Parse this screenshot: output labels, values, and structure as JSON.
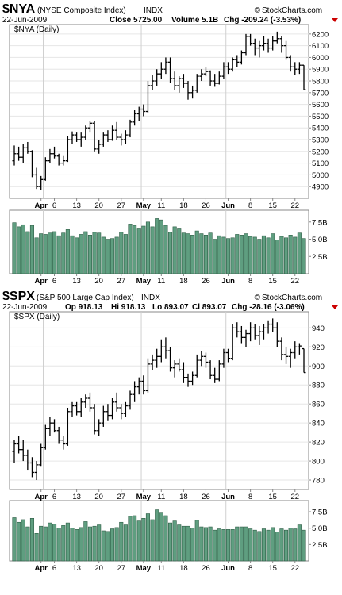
{
  "brand": {
    "text": "StockCharts.com",
    "symbol": "©"
  },
  "chart_data": [
    {
      "type": "ohlc",
      "symbol": "$NYA",
      "name": "(NYSE Composite Index)",
      "exchange": "INDX",
      "date": "22-Jun-2009",
      "stats": [
        "Close 5725.00",
        "Volume 5.1B",
        "Chg -209.24 (-3.53%)"
      ],
      "change_direction": "down",
      "price_label": "$NYA (Daily)",
      "ylim": [
        4800,
        6280
      ],
      "yticks": [
        4900,
        5000,
        5100,
        5200,
        5300,
        5400,
        5500,
        5600,
        5700,
        5800,
        5900,
        6000,
        6100,
        6200
      ],
      "ytick_labels": [
        "4900",
        "5000",
        "5100",
        "5200",
        "5300",
        "5400",
        "5500",
        "5600",
        "5700",
        "5800",
        "5900",
        "6000",
        "6100",
        "6200"
      ],
      "volume_ylim": [
        0,
        9.2
      ],
      "volume_ticks": [
        2.5,
        5.0,
        7.5
      ],
      "volume_tick_labels": [
        "2.5B",
        "5.0B",
        "7.5B"
      ],
      "x_labels": [
        {
          "i": 6,
          "label": "Apr",
          "bold": true
        },
        {
          "i": 9,
          "label": "6",
          "bold": false
        },
        {
          "i": 14,
          "label": "13",
          "bold": false
        },
        {
          "i": 19,
          "label": "20",
          "bold": false
        },
        {
          "i": 24,
          "label": "27",
          "bold": false
        },
        {
          "i": 29,
          "label": "May",
          "bold": true
        },
        {
          "i": 33,
          "label": "11",
          "bold": false
        },
        {
          "i": 38,
          "label": "18",
          "bold": false
        },
        {
          "i": 43,
          "label": "26",
          "bold": false
        },
        {
          "i": 48,
          "label": "Jun",
          "bold": true
        },
        {
          "i": 53,
          "label": "8",
          "bold": false
        },
        {
          "i": 58,
          "label": "15",
          "bold": false
        },
        {
          "i": 63,
          "label": "22",
          "bold": false
        }
      ],
      "month_lines": [
        6,
        28,
        47
      ],
      "ohlc": [
        [
          5120,
          5250,
          5080,
          5180
        ],
        [
          5180,
          5240,
          5120,
          5150
        ],
        [
          5150,
          5260,
          5100,
          5230
        ],
        [
          5230,
          5280,
          5180,
          5200
        ],
        [
          5200,
          5210,
          4980,
          5000
        ],
        [
          5000,
          5060,
          4880,
          4900
        ],
        [
          4900,
          4990,
          4870,
          4960
        ],
        [
          4960,
          5150,
          4950,
          5120
        ],
        [
          5120,
          5220,
          5100,
          5180
        ],
        [
          5180,
          5240,
          5140,
          5160
        ],
        [
          5160,
          5180,
          5080,
          5100
        ],
        [
          5100,
          5160,
          5080,
          5120
        ],
        [
          5120,
          5330,
          5110,
          5300
        ],
        [
          5300,
          5370,
          5260,
          5340
        ],
        [
          5340,
          5360,
          5280,
          5300
        ],
        [
          5300,
          5360,
          5240,
          5320
        ],
        [
          5320,
          5420,
          5300,
          5400
        ],
        [
          5400,
          5460,
          5360,
          5440
        ],
        [
          5440,
          5460,
          5200,
          5220
        ],
        [
          5220,
          5300,
          5180,
          5260
        ],
        [
          5260,
          5360,
          5240,
          5340
        ],
        [
          5340,
          5380,
          5280,
          5300
        ],
        [
          5300,
          5420,
          5290,
          5380
        ],
        [
          5380,
          5450,
          5300,
          5320
        ],
        [
          5320,
          5350,
          5250,
          5300
        ],
        [
          5300,
          5380,
          5260,
          5340
        ],
        [
          5340,
          5470,
          5320,
          5450
        ],
        [
          5450,
          5550,
          5420,
          5520
        ],
        [
          5520,
          5580,
          5460,
          5560
        ],
        [
          5560,
          5600,
          5500,
          5540
        ],
        [
          5540,
          5800,
          5530,
          5760
        ],
        [
          5760,
          5850,
          5720,
          5800
        ],
        [
          5800,
          5900,
          5760,
          5860
        ],
        [
          5860,
          5960,
          5820,
          5900
        ],
        [
          5900,
          6000,
          5860,
          5960
        ],
        [
          5960,
          6000,
          5780,
          5820
        ],
        [
          5820,
          5880,
          5720,
          5760
        ],
        [
          5760,
          5840,
          5700,
          5820
        ],
        [
          5820,
          5860,
          5740,
          5780
        ],
        [
          5780,
          5800,
          5640,
          5700
        ],
        [
          5700,
          5760,
          5650,
          5720
        ],
        [
          5720,
          5860,
          5700,
          5840
        ],
        [
          5840,
          5900,
          5800,
          5860
        ],
        [
          5860,
          5920,
          5840,
          5880
        ],
        [
          5880,
          5890,
          5760,
          5800
        ],
        [
          5800,
          5860,
          5750,
          5780
        ],
        [
          5780,
          5880,
          5770,
          5840
        ],
        [
          5840,
          5960,
          5820,
          5920
        ],
        [
          5920,
          5960,
          5860,
          5900
        ],
        [
          5900,
          6000,
          5880,
          5980
        ],
        [
          5980,
          6020,
          5920,
          5960
        ],
        [
          5960,
          6060,
          5940,
          6040
        ],
        [
          6040,
          6200,
          6020,
          6180
        ],
        [
          6180,
          6200,
          6100,
          6120
        ],
        [
          6120,
          6160,
          6020,
          6080
        ],
        [
          6080,
          6140,
          6000,
          6100
        ],
        [
          6100,
          6180,
          6060,
          6120
        ],
        [
          6120,
          6160,
          6040,
          6080
        ],
        [
          6080,
          6180,
          6060,
          6140
        ],
        [
          6140,
          6220,
          6120,
          6160
        ],
        [
          6160,
          6180,
          6040,
          6100
        ],
        [
          6100,
          6140,
          5980,
          6000
        ],
        [
          6000,
          6020,
          5880,
          5920
        ],
        [
          5920,
          5960,
          5850,
          5900
        ],
        [
          5900,
          5960,
          5860,
          5934
        ],
        [
          5934,
          5934,
          5720,
          5725
        ]
      ],
      "volume": [
        7.4,
        6.8,
        7.1,
        6.1,
        7.0,
        5.2,
        5.8,
        5.7,
        5.9,
        6.1,
        5.5,
        5.9,
        6.4,
        5.5,
        5.2,
        5.7,
        6.1,
        5.6,
        6.0,
        5.9,
        5.3,
        5.0,
        5.1,
        5.3,
        6.0,
        5.7,
        7.2,
        7.0,
        6.5,
        6.9,
        7.5,
        6.8,
        8.0,
        7.8,
        7.0,
        6.0,
        6.8,
        6.5,
        5.9,
        5.8,
        5.6,
        6.2,
        5.8,
        5.6,
        5.9,
        5.0,
        5.5,
        5.3,
        5.1,
        5.2,
        5.7,
        5.6,
        5.8,
        5.4,
        5.3,
        5.0,
        5.5,
        5.2,
        5.8,
        4.9,
        5.4,
        5.2,
        5.6,
        5.3,
        5.9,
        5.1
      ]
    },
    {
      "type": "ohlc",
      "symbol": "$SPX",
      "name": "(S&P 500 Large Cap Index)",
      "exchange": "INDX",
      "date": "22-Jun-2009",
      "stats": [
        "Op 918.13",
        "Hi 918.13",
        "Lo 893.07",
        "Cl 893.07",
        "Chg -28.16 (-3.06%)"
      ],
      "change_direction": "down",
      "price_label": "$SPX (Daily)",
      "ylim": [
        770,
        957
      ],
      "yticks": [
        780,
        800,
        820,
        840,
        860,
        880,
        900,
        920,
        940
      ],
      "ytick_labels": [
        "780",
        "800",
        "820",
        "840",
        "860",
        "880",
        "900",
        "920",
        "940"
      ],
      "volume_ylim": [
        0,
        9.2
      ],
      "volume_ticks": [
        2.5,
        5.0,
        7.5
      ],
      "volume_tick_labels": [
        "2.5B",
        "5.0B",
        "7.5B"
      ],
      "x_labels": [
        {
          "i": 6,
          "label": "Apr",
          "bold": true
        },
        {
          "i": 9,
          "label": "6",
          "bold": false
        },
        {
          "i": 14,
          "label": "13",
          "bold": false
        },
        {
          "i": 19,
          "label": "20",
          "bold": false
        },
        {
          "i": 24,
          "label": "27",
          "bold": false
        },
        {
          "i": 29,
          "label": "May",
          "bold": true
        },
        {
          "i": 33,
          "label": "11",
          "bold": false
        },
        {
          "i": 38,
          "label": "18",
          "bold": false
        },
        {
          "i": 43,
          "label": "26",
          "bold": false
        },
        {
          "i": 48,
          "label": "Jun",
          "bold": true
        },
        {
          "i": 53,
          "label": "8",
          "bold": false
        },
        {
          "i": 58,
          "label": "15",
          "bold": false
        },
        {
          "i": 63,
          "label": "22",
          "bold": false
        }
      ],
      "month_lines": [
        6,
        28,
        47
      ],
      "ohlc": [
        [
          810,
          822,
          798,
          818
        ],
        [
          818,
          826,
          808,
          812
        ],
        [
          812,
          822,
          800,
          806
        ],
        [
          806,
          812,
          790,
          798
        ],
        [
          798,
          804,
          783,
          788
        ],
        [
          788,
          800,
          780,
          796
        ],
        [
          796,
          818,
          794,
          814
        ],
        [
          814,
          838,
          812,
          834
        ],
        [
          834,
          846,
          826,
          840
        ],
        [
          840,
          844,
          830,
          832
        ],
        [
          832,
          836,
          818,
          822
        ],
        [
          822,
          826,
          812,
          818
        ],
        [
          818,
          856,
          816,
          852
        ],
        [
          852,
          862,
          846,
          858
        ],
        [
          858,
          862,
          848,
          852
        ],
        [
          852,
          866,
          846,
          862
        ],
        [
          862,
          870,
          856,
          866
        ],
        [
          866,
          872,
          852,
          856
        ],
        [
          856,
          860,
          828,
          832
        ],
        [
          832,
          844,
          826,
          840
        ],
        [
          840,
          858,
          836,
          852
        ],
        [
          852,
          860,
          842,
          848
        ],
        [
          848,
          866,
          844,
          862
        ],
        [
          862,
          872,
          852,
          856
        ],
        [
          856,
          860,
          844,
          850
        ],
        [
          850,
          862,
          846,
          858
        ],
        [
          858,
          874,
          854,
          870
        ],
        [
          870,
          884,
          862,
          878
        ],
        [
          878,
          888,
          870,
          884
        ],
        [
          884,
          890,
          870,
          874
        ],
        [
          874,
          908,
          872,
          902
        ],
        [
          902,
          912,
          896,
          906
        ],
        [
          906,
          918,
          898,
          910
        ],
        [
          910,
          928,
          904,
          920
        ],
        [
          920,
          930,
          908,
          916
        ],
        [
          916,
          920,
          894,
          898
        ],
        [
          898,
          906,
          888,
          902
        ],
        [
          902,
          908,
          894,
          896
        ],
        [
          896,
          904,
          882,
          888
        ],
        [
          888,
          892,
          878,
          884
        ],
        [
          884,
          894,
          880,
          890
        ],
        [
          890,
          912,
          888,
          906
        ],
        [
          906,
          916,
          900,
          910
        ],
        [
          910,
          914,
          898,
          904
        ],
        [
          904,
          906,
          886,
          890
        ],
        [
          890,
          898,
          882,
          886
        ],
        [
          886,
          906,
          884,
          902
        ],
        [
          902,
          918,
          898,
          914
        ],
        [
          914,
          918,
          904,
          908
        ],
        [
          908,
          944,
          906,
          940
        ],
        [
          940,
          946,
          930,
          936
        ],
        [
          936,
          942,
          924,
          930
        ],
        [
          930,
          938,
          920,
          934
        ],
        [
          934,
          946,
          926,
          940
        ],
        [
          940,
          944,
          928,
          932
        ],
        [
          932,
          942,
          922,
          936
        ],
        [
          936,
          944,
          928,
          940
        ],
        [
          940,
          948,
          934,
          944
        ],
        [
          944,
          950,
          936,
          940
        ],
        [
          940,
          946,
          920,
          926
        ],
        [
          926,
          930,
          906,
          912
        ],
        [
          912,
          920,
          902,
          910
        ],
        [
          910,
          918,
          898,
          914
        ],
        [
          914,
          926,
          908,
          920
        ],
        [
          920,
          924,
          912,
          921
        ],
        [
          918.13,
          918.13,
          893.07,
          893.07
        ]
      ],
      "volume": [
        6.6,
        5.9,
        6.3,
        5.2,
        6.5,
        4.2,
        5.3,
        5.2,
        5.8,
        5.6,
        5.0,
        5.4,
        5.8,
        5.0,
        4.8,
        5.1,
        6.0,
        5.2,
        5.3,
        5.5,
        4.6,
        4.5,
        4.9,
        5.1,
        5.9,
        5.5,
        6.8,
        6.9,
        6.1,
        6.5,
        7.2,
        6.3,
        7.8,
        7.3,
        6.9,
        5.8,
        6.1,
        5.5,
        5.3,
        5.3,
        5.0,
        6.2,
        5.2,
        5.1,
        5.2,
        4.7,
        4.9,
        4.8,
        4.8,
        4.8,
        5.2,
        5.2,
        5.2,
        4.9,
        4.7,
        4.5,
        4.9,
        4.7,
        5.1,
        4.4,
        4.9,
        4.7,
        5.0,
        4.9,
        5.5,
        4.7
      ]
    }
  ]
}
